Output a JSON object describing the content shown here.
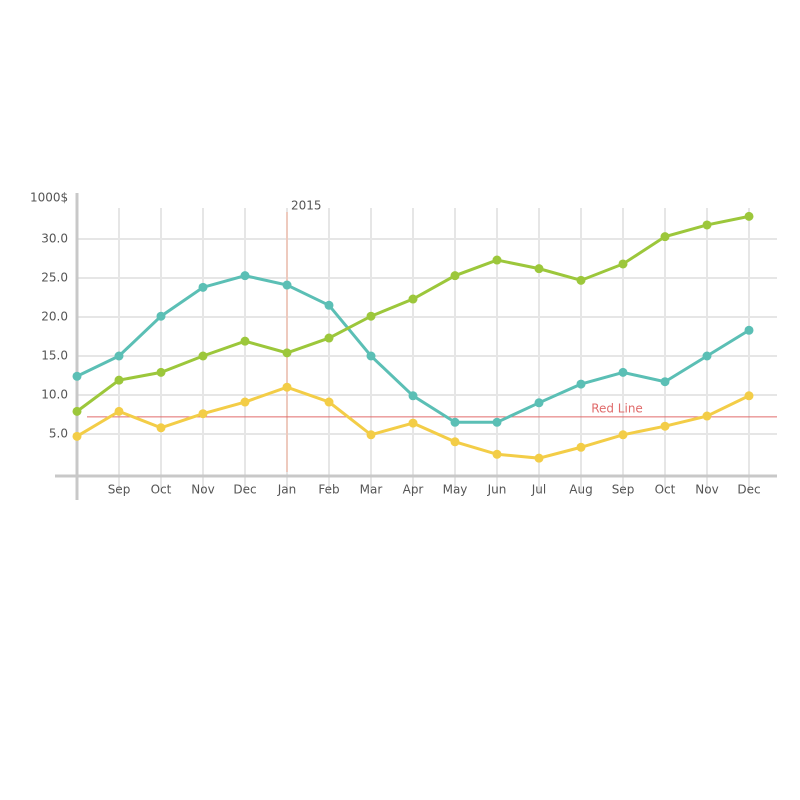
{
  "chart_data": {
    "type": "line",
    "y_label": "1000$",
    "categories": [
      null,
      "Sep",
      "Oct",
      "Nov",
      "Dec",
      "Jan",
      "Feb",
      "Mar",
      "Apr",
      "May",
      "Jun",
      "Jul",
      "Aug",
      "Sep",
      "Oct",
      "Nov",
      "Dec"
    ],
    "series": [
      {
        "color": "#5bbfb5",
        "values": [
          12.4,
          15.0,
          20.1,
          23.8,
          25.3,
          24.1,
          21.5,
          15.0,
          9.9,
          6.5,
          6.5,
          9.0,
          11.4,
          12.9,
          11.7,
          15.0,
          18.3
        ]
      },
      {
        "color": "#9cc73b",
        "values": [
          7.9,
          11.9,
          12.9,
          15.0,
          16.9,
          15.4,
          17.3,
          20.1,
          22.3,
          25.3,
          27.3,
          26.2,
          24.7,
          26.8,
          30.3,
          31.8,
          32.9
        ]
      },
      {
        "color": "#f3cd47",
        "values": [
          4.7,
          7.9,
          5.8,
          7.6,
          9.1,
          11.0,
          9.1,
          4.9,
          6.4,
          4.0,
          2.4,
          1.9,
          3.3,
          4.9,
          6.0,
          7.3,
          9.9
        ]
      }
    ],
    "ylim": [
      0,
      35
    ],
    "yticks": [
      {
        "value": 5,
        "label": "5.0"
      },
      {
        "value": 10,
        "label": "10.0"
      },
      {
        "value": 15,
        "label": "15.0"
      },
      {
        "value": 20,
        "label": "20.0"
      },
      {
        "value": 25,
        "label": "25.0"
      },
      {
        "value": 30,
        "label": "30.0"
      }
    ],
    "grid": true,
    "reference_line": {
      "value": 7.2,
      "label": "Red Line",
      "color": "#e06b6b"
    },
    "vertical_marker": {
      "at": "Jan",
      "label": "2015",
      "color": "#f0c0b0"
    }
  }
}
